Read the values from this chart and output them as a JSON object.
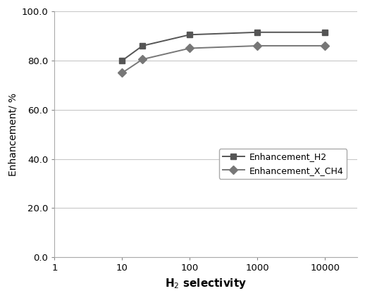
{
  "x": [
    10,
    20,
    100,
    1000,
    10000
  ],
  "enhancement_h2": [
    80.0,
    86.0,
    90.5,
    91.5,
    91.5
  ],
  "enhancement_ch4": [
    75.0,
    80.5,
    85.0,
    86.0,
    86.0
  ],
  "xlabel": "H$_2$ selectivity",
  "ylabel": "Enhancement/ %",
  "legend_h2": "Enhancement_H2",
  "legend_ch4": "Enhancement_X_CH4",
  "xlim": [
    1,
    30000
  ],
  "ylim": [
    0.0,
    100.0
  ],
  "yticks": [
    0.0,
    20.0,
    40.0,
    60.0,
    80.0,
    100.0
  ],
  "xticks": [
    1,
    10,
    100,
    1000,
    10000
  ],
  "color_h2": "#555555",
  "color_ch4": "#777777",
  "bg_color": "#ffffff",
  "grid_color": "#c8c8c8"
}
